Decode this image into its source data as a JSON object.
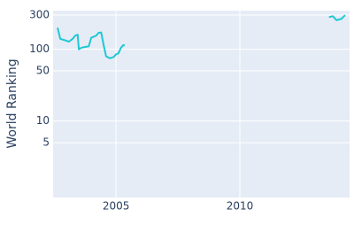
{
  "chart_data": {
    "type": "line",
    "y_title": "World Ranking",
    "x": [
      2002.64,
      2002.75,
      2002.9,
      2003.1,
      2003.25,
      2003.35,
      2003.45,
      2003.5,
      2003.6,
      2003.75,
      2003.9,
      2004.0,
      2004.2,
      2004.3,
      2004.4,
      2004.5,
      2004.6,
      2004.75,
      2004.9,
      2005.0,
      2005.1,
      2005.2,
      2005.3,
      2005.35,
      null,
      2013.6,
      2013.75,
      2013.9,
      2014.1,
      2014.25
    ],
    "series": [
      {
        "color": "#1ec8d4",
        "values": [
          200,
          140,
          135,
          128,
          140,
          155,
          160,
          100,
          105,
          108,
          110,
          145,
          155,
          170,
          172,
          115,
          80,
          75,
          78,
          85,
          88,
          105,
          115,
          112,
          null,
          280,
          290,
          255,
          265,
          300
        ]
      }
    ],
    "xlim": [
      2002.46,
      2014.43
    ],
    "xticks": [
      2005,
      2010
    ],
    "ylim": [
      0.86,
      346
    ],
    "yticks": [
      5,
      10,
      50,
      100,
      300
    ],
    "yscale": "log",
    "grid": true
  }
}
